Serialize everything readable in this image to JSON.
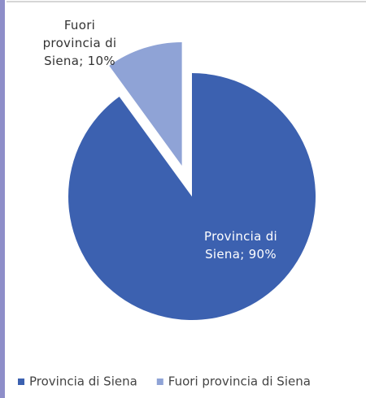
{
  "chart_data": {
    "type": "pie",
    "categories": [
      "Provincia di Siena",
      "Fuori provincia di Siena"
    ],
    "values": [
      90,
      10
    ],
    "value_labels": [
      "Provincia di Siena; 90%",
      "Fuori provincia di Siena; 10%"
    ],
    "colors": [
      "#3c61b0",
      "#8fa3d6"
    ],
    "exploded": [
      false,
      true
    ],
    "legend": "bottom"
  }
}
